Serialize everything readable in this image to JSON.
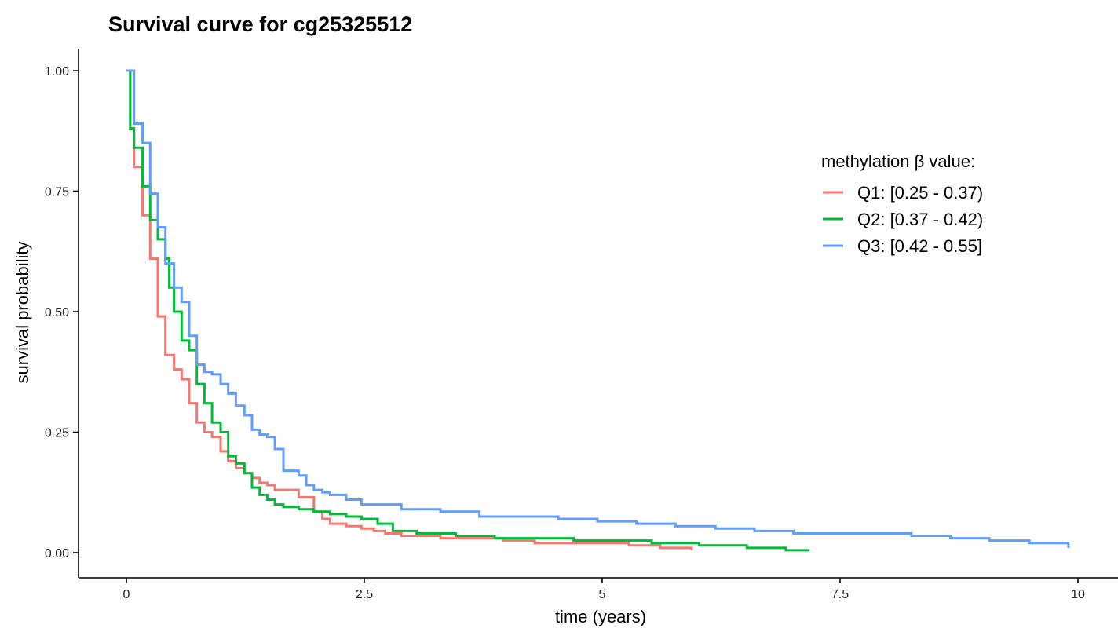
{
  "chart_data": {
    "type": "line",
    "step": true,
    "title": "Survival curve for cg25325512",
    "xlabel": "time (years)",
    "ylabel": "survival probability",
    "xlim": [
      0,
      10
    ],
    "ylim": [
      0,
      1
    ],
    "x_ticks": [
      0,
      2.5,
      5,
      7.5,
      10
    ],
    "x_tick_labels": [
      "0",
      "2.5",
      "5",
      "7.5",
      "10"
    ],
    "y_ticks": [
      0,
      0.25,
      0.5,
      0.75,
      1
    ],
    "y_tick_labels": [
      "0.00",
      "0.25",
      "0.50",
      "0.75",
      "1.00"
    ],
    "grid": false,
    "legend": {
      "title": "methylation β value:",
      "position": "top-right"
    },
    "series": [
      {
        "name": "Q1: [0.25 - 0.37)",
        "color": "#F8766D",
        "x": [
          0,
          0.04,
          0.08,
          0.17,
          0.25,
          0.33,
          0.41,
          0.5,
          0.58,
          0.66,
          0.74,
          0.82,
          0.9,
          0.99,
          1.07,
          1.15,
          1.24,
          1.32,
          1.4,
          1.48,
          1.56,
          1.65,
          1.81,
          1.97,
          2.06,
          2.14,
          2.31,
          2.47,
          2.6,
          2.72,
          2.89,
          3.05,
          3.3,
          3.63,
          3.96,
          4.29,
          4.62,
          4.95,
          5.28,
          5.61,
          5.94
        ],
        "y": [
          1.0,
          0.88,
          0.8,
          0.7,
          0.61,
          0.49,
          0.41,
          0.38,
          0.36,
          0.31,
          0.27,
          0.25,
          0.24,
          0.21,
          0.19,
          0.175,
          0.165,
          0.155,
          0.145,
          0.14,
          0.13,
          0.13,
          0.115,
          0.085,
          0.07,
          0.06,
          0.055,
          0.05,
          0.045,
          0.04,
          0.035,
          0.035,
          0.03,
          0.03,
          0.025,
          0.02,
          0.02,
          0.02,
          0.015,
          0.01,
          0.005
        ]
      },
      {
        "name": "Q2: [0.37 - 0.42)",
        "color": "#00BA38",
        "x": [
          0,
          0.04,
          0.08,
          0.17,
          0.25,
          0.33,
          0.41,
          0.45,
          0.5,
          0.58,
          0.66,
          0.74,
          0.82,
          0.9,
          0.99,
          1.07,
          1.15,
          1.24,
          1.32,
          1.4,
          1.48,
          1.56,
          1.65,
          1.81,
          1.97,
          2.14,
          2.31,
          2.47,
          2.64,
          2.8,
          3.05,
          3.46,
          3.87,
          4.29,
          4.7,
          5.11,
          5.52,
          6.02,
          6.52,
          6.93,
          7.18
        ],
        "y": [
          1.0,
          0.88,
          0.84,
          0.76,
          0.69,
          0.65,
          0.61,
          0.55,
          0.5,
          0.44,
          0.42,
          0.35,
          0.31,
          0.27,
          0.25,
          0.2,
          0.185,
          0.165,
          0.135,
          0.12,
          0.11,
          0.1,
          0.095,
          0.09,
          0.085,
          0.08,
          0.075,
          0.07,
          0.06,
          0.045,
          0.04,
          0.035,
          0.03,
          0.03,
          0.025,
          0.025,
          0.02,
          0.015,
          0.01,
          0.005,
          0.005
        ]
      },
      {
        "name": "Q3: [0.42 - 0.55]",
        "color": "#619CFF",
        "x": [
          0,
          0.04,
          0.08,
          0.17,
          0.25,
          0.33,
          0.41,
          0.5,
          0.58,
          0.66,
          0.74,
          0.82,
          0.9,
          0.99,
          1.07,
          1.15,
          1.24,
          1.32,
          1.4,
          1.48,
          1.56,
          1.65,
          1.81,
          1.89,
          1.97,
          2.06,
          2.14,
          2.31,
          2.47,
          2.89,
          3.3,
          3.71,
          4.12,
          4.54,
          4.95,
          5.36,
          5.77,
          6.19,
          6.6,
          7.01,
          7.42,
          7.84,
          8.25,
          8.66,
          9.07,
          9.49,
          9.9
        ],
        "y": [
          1.0,
          1.0,
          0.89,
          0.85,
          0.745,
          0.675,
          0.6,
          0.55,
          0.52,
          0.45,
          0.39,
          0.375,
          0.37,
          0.35,
          0.33,
          0.305,
          0.285,
          0.255,
          0.245,
          0.24,
          0.215,
          0.17,
          0.16,
          0.14,
          0.13,
          0.125,
          0.12,
          0.11,
          0.1,
          0.09,
          0.085,
          0.075,
          0.075,
          0.07,
          0.065,
          0.06,
          0.055,
          0.05,
          0.045,
          0.04,
          0.04,
          0.04,
          0.035,
          0.03,
          0.025,
          0.02,
          0.01
        ]
      }
    ]
  }
}
